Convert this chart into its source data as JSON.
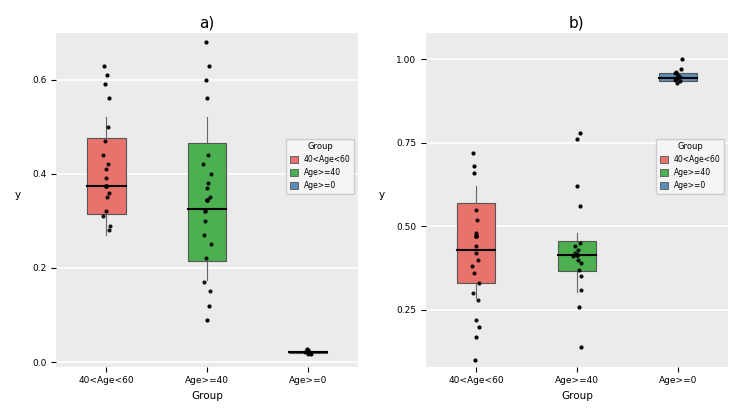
{
  "panel_a": {
    "title": "a)",
    "xlabel": "Group",
    "ylabel": "y",
    "groups": [
      "40<Age<60",
      "Age>=40",
      "Age>=0"
    ],
    "colors": [
      "#E8736C",
      "#4CAF50",
      "#5B8DB8"
    ],
    "group1": {
      "q1": 0.315,
      "median": 0.375,
      "q3": 0.475,
      "whisker_low": 0.27,
      "whisker_high": 0.52,
      "mean": 0.375,
      "scatter": [
        0.31,
        0.36,
        0.39,
        0.42,
        0.29,
        0.35,
        0.41,
        0.44,
        0.47,
        0.32,
        0.5,
        0.28
      ]
    },
    "group2": {
      "q1": 0.215,
      "median": 0.325,
      "q3": 0.465,
      "whisker_low": 0.175,
      "whisker_high": 0.52,
      "mean": 0.345,
      "scatter": [
        0.22,
        0.27,
        0.3,
        0.35,
        0.32,
        0.37,
        0.4,
        0.42,
        0.44,
        0.25,
        0.32,
        0.38,
        0.15,
        0.17
      ]
    },
    "group3": {
      "q1": 0.019,
      "median": 0.022,
      "q3": 0.024,
      "whisker_low": 0.018,
      "whisker_high": 0.026,
      "mean": 0.022,
      "scatter": [
        0.018,
        0.019,
        0.02,
        0.021,
        0.022,
        0.023,
        0.024,
        0.025,
        0.026,
        0.017
      ]
    },
    "outliers_a": {
      "g1_above": [
        0.56,
        0.59,
        0.61,
        0.63
      ],
      "g1_below": [],
      "g2_above": [
        0.56,
        0.6,
        0.63,
        0.68
      ],
      "g2_below": [
        0.09,
        0.12
      ],
      "g3_above": [
        0.028
      ],
      "g3_below": []
    },
    "ylim": [
      -0.01,
      0.7
    ],
    "yticks": [
      0.0,
      0.2,
      0.4,
      0.6
    ]
  },
  "panel_b": {
    "title": "b)",
    "xlabel": "Group",
    "ylabel": "y",
    "groups": [
      "40<Age<60",
      "Age>=40",
      "Age>=0"
    ],
    "colors": [
      "#E8736C",
      "#4CAF50",
      "#5B8DB8"
    ],
    "group1": {
      "q1": 0.33,
      "median": 0.43,
      "q3": 0.57,
      "whisker_low": 0.285,
      "whisker_high": 0.62,
      "mean": 0.47,
      "scatter": [
        0.33,
        0.36,
        0.4,
        0.44,
        0.48,
        0.52,
        0.55,
        0.42,
        0.38,
        0.3,
        0.28,
        0.22
      ]
    },
    "group2": {
      "q1": 0.365,
      "median": 0.415,
      "q3": 0.455,
      "whisker_low": 0.305,
      "whisker_high": 0.48,
      "mean": 0.415,
      "scatter": [
        0.37,
        0.39,
        0.4,
        0.41,
        0.42,
        0.43,
        0.44,
        0.35,
        0.31,
        0.45
      ]
    },
    "group3": {
      "q1": 0.935,
      "median": 0.945,
      "q3": 0.958,
      "whisker_low": 0.928,
      "whisker_high": 0.963,
      "mean": 0.947,
      "scatter": [
        0.93,
        0.935,
        0.938,
        0.942,
        0.945,
        0.948,
        0.952,
        0.958,
        0.962
      ]
    },
    "outliers_b": {
      "g1_above": [
        0.66,
        0.68,
        0.72
      ],
      "g1_below": [
        0.1,
        0.17,
        0.2
      ],
      "g2_above": [
        0.56,
        0.62,
        0.76,
        0.78
      ],
      "g2_below": [
        0.14,
        0.26
      ],
      "g3_above": [
        0.97,
        1.0
      ],
      "g3_below": []
    },
    "ylim": [
      0.08,
      1.08
    ],
    "yticks": [
      0.25,
      0.5,
      0.75,
      1.0
    ]
  },
  "legend_labels": [
    "40<Age<60",
    "Age>=40",
    "Age>=0"
  ],
  "legend_colors": [
    "#E8736C",
    "#4CAF50",
    "#5B8DB8"
  ],
  "bg_color": "#EBEBEB",
  "grid_color": "#FFFFFF",
  "box_width": 0.38,
  "line_color": "#000000"
}
